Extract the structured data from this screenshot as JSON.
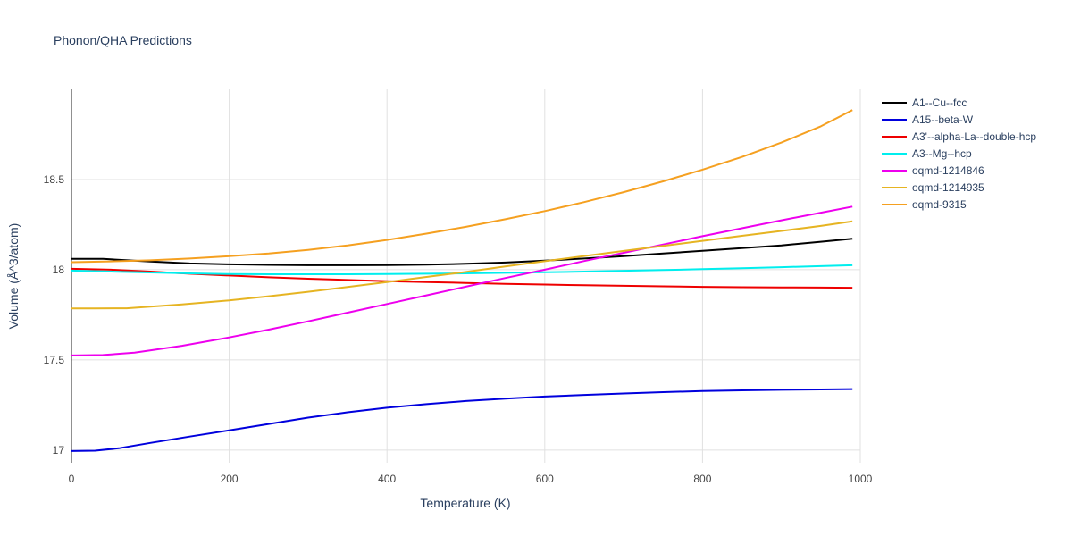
{
  "chart_data": {
    "type": "line",
    "title": "Phonon/QHA Predictions",
    "xlabel": "Temperature (K)",
    "ylabel": "Volume (Å^3/atom)",
    "xlim": [
      0,
      1000
    ],
    "ylim": [
      16.93,
      19.0
    ],
    "xticks": [
      0,
      200,
      400,
      600,
      800,
      1000
    ],
    "yticks": [
      17,
      17.5,
      18,
      18.5
    ],
    "grid": true,
    "legend_position": "top-right",
    "series": [
      {
        "name": "A1--Cu--fcc",
        "color": "#000000",
        "x": [
          0,
          40,
          100,
          150,
          200,
          250,
          300,
          350,
          400,
          450,
          500,
          550,
          600,
          650,
          700,
          750,
          800,
          850,
          900,
          950,
          990
        ],
        "y": [
          18.06,
          18.06,
          18.045,
          18.035,
          18.03,
          18.027,
          18.025,
          18.025,
          18.026,
          18.028,
          18.033,
          18.04,
          18.05,
          18.062,
          18.075,
          18.09,
          18.105,
          18.12,
          18.135,
          18.155,
          18.172
        ]
      },
      {
        "name": "A15--beta-W",
        "color": "#0000dd",
        "x": [
          0,
          30,
          60,
          100,
          150,
          200,
          250,
          300,
          350,
          400,
          450,
          500,
          550,
          600,
          650,
          700,
          750,
          800,
          850,
          900,
          950,
          990
        ],
        "y": [
          16.995,
          16.997,
          17.01,
          17.04,
          17.075,
          17.11,
          17.145,
          17.18,
          17.21,
          17.235,
          17.255,
          17.272,
          17.285,
          17.297,
          17.306,
          17.314,
          17.321,
          17.327,
          17.331,
          17.334,
          17.336,
          17.338
        ]
      },
      {
        "name": "A3'--alpha-La--double-hcp",
        "color": "#ee0000",
        "x": [
          0,
          50,
          100,
          150,
          200,
          250,
          300,
          350,
          400,
          450,
          500,
          550,
          600,
          650,
          700,
          750,
          800,
          850,
          900,
          950,
          990
        ],
        "y": [
          18.005,
          18.0,
          17.99,
          17.978,
          17.968,
          17.958,
          17.95,
          17.943,
          17.937,
          17.932,
          17.927,
          17.922,
          17.918,
          17.914,
          17.911,
          17.908,
          17.905,
          17.903,
          17.902,
          17.901,
          17.9
        ]
      },
      {
        "name": "A3--Mg--hcp",
        "color": "#00eeee",
        "x": [
          0,
          50,
          100,
          150,
          200,
          250,
          300,
          350,
          400,
          450,
          500,
          550,
          600,
          650,
          700,
          750,
          800,
          850,
          900,
          950,
          990
        ],
        "y": [
          17.995,
          17.99,
          17.985,
          17.98,
          17.976,
          17.975,
          17.975,
          17.975,
          17.976,
          17.978,
          17.98,
          17.983,
          17.986,
          17.99,
          17.994,
          17.998,
          18.003,
          18.008,
          18.014,
          18.02,
          18.025
        ]
      },
      {
        "name": "oqmd-1214846",
        "color": "#ee00ee",
        "x": [
          0,
          40,
          80,
          140,
          200,
          250,
          300,
          350,
          400,
          450,
          500,
          550,
          600,
          650,
          700,
          750,
          800,
          850,
          900,
          950,
          990
        ],
        "y": [
          17.525,
          17.527,
          17.54,
          17.578,
          17.625,
          17.668,
          17.714,
          17.762,
          17.81,
          17.858,
          17.906,
          17.954,
          18.0,
          18.048,
          18.094,
          18.14,
          18.186,
          18.23,
          18.274,
          18.316,
          18.35
        ]
      },
      {
        "name": "oqmd-1214935",
        "color": "#e6b422",
        "x": [
          0,
          30,
          70,
          140,
          200,
          250,
          300,
          350,
          400,
          450,
          500,
          550,
          600,
          650,
          700,
          750,
          800,
          850,
          900,
          950,
          990
        ],
        "y": [
          17.785,
          17.785,
          17.786,
          17.808,
          17.83,
          17.853,
          17.878,
          17.904,
          17.932,
          17.96,
          17.988,
          18.018,
          18.047,
          18.076,
          18.104,
          18.132,
          18.16,
          18.188,
          18.215,
          18.243,
          18.268
        ]
      },
      {
        "name": "oqmd-9315",
        "color": "#f5a020",
        "x": [
          0,
          50,
          100,
          150,
          200,
          250,
          300,
          350,
          400,
          450,
          500,
          550,
          600,
          650,
          700,
          750,
          800,
          850,
          900,
          950,
          990
        ],
        "y": [
          18.042,
          18.046,
          18.052,
          18.062,
          18.075,
          18.09,
          18.11,
          18.135,
          18.165,
          18.2,
          18.238,
          18.28,
          18.325,
          18.375,
          18.43,
          18.49,
          18.555,
          18.625,
          18.705,
          18.795,
          18.885
        ]
      }
    ]
  }
}
